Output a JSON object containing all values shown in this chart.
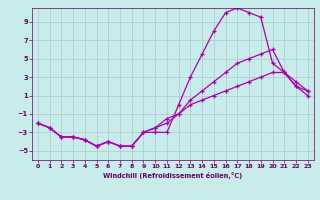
{
  "xlabel": "Windchill (Refroidissement éolien,°C)",
  "bg_color": "#c8ecec",
  "grid_color": "#b0c8c8",
  "line_color": "#aa00aa",
  "spine_color": "#660066",
  "tick_color": "#660066",
  "ylim": [
    -6,
    10.5
  ],
  "yticks": [
    -5,
    -3,
    -1,
    1,
    3,
    5,
    7,
    9
  ],
  "xlim": [
    -0.5,
    23.5
  ],
  "xticks": [
    0,
    1,
    2,
    3,
    4,
    5,
    6,
    7,
    8,
    9,
    10,
    11,
    12,
    13,
    14,
    15,
    16,
    17,
    18,
    19,
    20,
    21,
    22,
    23
  ],
  "line1_x": [
    0,
    1,
    2,
    3,
    4,
    5,
    6,
    7,
    8,
    9,
    10,
    11,
    12,
    13,
    14,
    15,
    16,
    17,
    18,
    19,
    20,
    21,
    22,
    23
  ],
  "line1_y": [
    -2.0,
    -2.5,
    -3.5,
    -3.5,
    -3.8,
    -4.5,
    -4.0,
    -4.5,
    -4.5,
    -3.0,
    -3.0,
    -3.0,
    0.0,
    3.0,
    5.5,
    8.0,
    10.0,
    10.5,
    10.0,
    9.5,
    4.5,
    3.5,
    2.5,
    1.5
  ],
  "line2_x": [
    0,
    1,
    2,
    3,
    4,
    5,
    6,
    7,
    8,
    9,
    10,
    11,
    12,
    13,
    14,
    15,
    16,
    17,
    18,
    19,
    20,
    21,
    22,
    23
  ],
  "line2_y": [
    -2.0,
    -2.5,
    -3.5,
    -3.5,
    -3.8,
    -4.5,
    -4.0,
    -4.5,
    -4.5,
    -3.0,
    -2.5,
    -2.0,
    -1.0,
    0.5,
    1.5,
    2.5,
    3.5,
    4.5,
    5.0,
    5.5,
    6.0,
    3.5,
    2.0,
    1.5
  ],
  "line3_x": [
    0,
    1,
    2,
    3,
    4,
    5,
    6,
    7,
    8,
    9,
    10,
    11,
    12,
    13,
    14,
    15,
    16,
    17,
    18,
    19,
    20,
    21,
    22,
    23
  ],
  "line3_y": [
    -2.0,
    -2.5,
    -3.5,
    -3.5,
    -3.8,
    -4.5,
    -4.0,
    -4.5,
    -4.5,
    -3.0,
    -2.5,
    -1.5,
    -1.0,
    0.0,
    0.5,
    1.0,
    1.5,
    2.0,
    2.5,
    3.0,
    3.5,
    3.5,
    2.0,
    1.0
  ]
}
